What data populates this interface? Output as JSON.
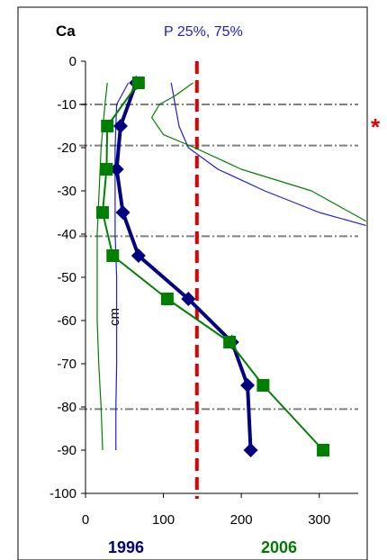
{
  "chart_data": {
    "type": "line",
    "title": "Ca",
    "subtitle": "P 25%, 75%",
    "ylabel": "cm",
    "xlim": [
      0,
      350
    ],
    "ylim": [
      -100,
      0
    ],
    "xticks": [
      0,
      100,
      200,
      300
    ],
    "yticks": [
      0,
      -10,
      -20,
      -30,
      -40,
      -50,
      -60,
      -70,
      -80,
      -90,
      -100
    ],
    "grid": false,
    "series": [
      {
        "name": "1996",
        "color": "#000080",
        "marker": "diamond",
        "x": [
          65,
          45,
          40,
          48,
          68,
          132,
          188,
          208,
          212
        ],
        "y": [
          -5,
          -15,
          -25,
          -35,
          -45,
          -55,
          -65,
          -75,
          -90
        ]
      },
      {
        "name": "2006",
        "color": "#008000",
        "marker": "square",
        "x": [
          68,
          28,
          27,
          22,
          35,
          105,
          185,
          228,
          305
        ],
        "y": [
          -5,
          -15,
          -25,
          -35,
          -45,
          -55,
          -65,
          -75,
          -90
        ]
      }
    ],
    "percentile_lines": [
      {
        "color": "#1f1fd0",
        "points": [
          [
            110,
            -5
          ],
          [
            115,
            -10
          ],
          [
            120,
            -15
          ],
          [
            132,
            -20
          ],
          [
            170,
            -25
          ],
          [
            230,
            -30
          ],
          [
            300,
            -35
          ],
          [
            360,
            -38
          ]
        ]
      },
      {
        "color": "#1f1fd0",
        "points": [
          [
            55,
            -5
          ],
          [
            40,
            -10
          ],
          [
            38,
            -20
          ],
          [
            38,
            -30
          ],
          [
            38,
            -40
          ],
          [
            40,
            -50
          ],
          [
            40,
            -60
          ],
          [
            40,
            -70
          ],
          [
            39,
            -80
          ],
          [
            39,
            -90
          ]
        ]
      },
      {
        "color": "#008000",
        "points": [
          [
            138,
            -5
          ],
          [
            115,
            -8
          ],
          [
            95,
            -10
          ],
          [
            85,
            -13
          ],
          [
            100,
            -17
          ],
          [
            140,
            -20
          ],
          [
            200,
            -25
          ],
          [
            290,
            -30
          ],
          [
            360,
            -37
          ]
        ]
      },
      {
        "color": "#008000",
        "points": [
          [
            28,
            -5
          ],
          [
            25,
            -10
          ],
          [
            20,
            -20
          ],
          [
            15,
            -40
          ],
          [
            15,
            -60
          ],
          [
            17,
            -70
          ],
          [
            20,
            -80
          ],
          [
            22,
            -90
          ]
        ]
      }
    ],
    "reference_lines": [
      {
        "orientation": "horizontal",
        "value": -10,
        "color": "#808080",
        "style": "dash-dot"
      },
      {
        "orientation": "horizontal",
        "value": -19.5,
        "color": "#808080",
        "style": "dash-dot"
      },
      {
        "orientation": "horizontal",
        "value": -40.5,
        "color": "#808080",
        "style": "dash-dot"
      },
      {
        "orientation": "horizontal",
        "value": -80.5,
        "color": "#808080",
        "style": "dash-dot"
      },
      {
        "orientation": "vertical",
        "value": 143,
        "color": "#e00000",
        "style": "dashed"
      }
    ],
    "x_annotations": [
      {
        "text": "1996",
        "color": "#00007a"
      },
      {
        "text": "2006",
        "color": "#007a00"
      }
    ],
    "side_annotation": {
      "text": "*",
      "color": "#e00000"
    }
  }
}
